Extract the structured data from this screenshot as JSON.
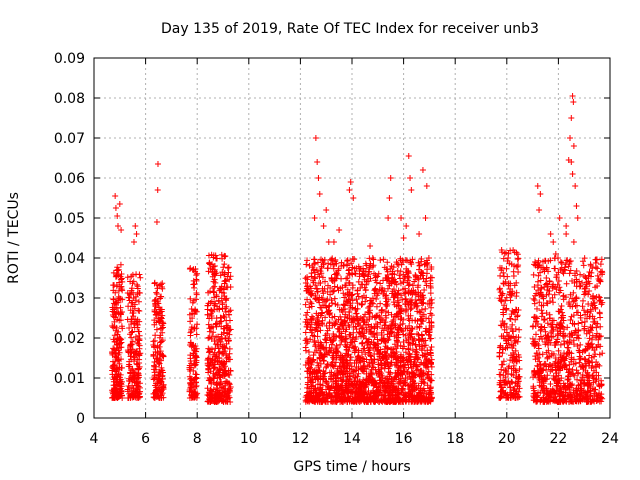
{
  "chart_data": {
    "type": "scatter",
    "title": "Day 135 of 2019, Rate Of TEC Index for receiver unb3",
    "xlabel": "GPS time / hours",
    "ylabel": "ROTI / TECUs",
    "xlim": [
      4,
      24
    ],
    "ylim": [
      0,
      0.09
    ],
    "xticks": [
      "4",
      "6",
      "8",
      "10",
      "12",
      "14",
      "16",
      "18",
      "20",
      "22",
      "24"
    ],
    "yticks": [
      "0",
      "0.01",
      "0.02",
      "0.03",
      "0.04",
      "0.05",
      "0.06",
      "0.07",
      "0.08",
      "0.09"
    ],
    "grid": true,
    "marker": "+",
    "color": "#ff0000",
    "series": [
      {
        "name": "ROTI",
        "clusters": [
          {
            "x": [
              4.7,
              5.1
            ],
            "ymin": 0.005,
            "ymax": 0.039,
            "n": 220
          },
          {
            "x": [
              5.3,
              5.8
            ],
            "ymin": 0.005,
            "ymax": 0.036,
            "n": 200
          },
          {
            "x": [
              6.3,
              6.7
            ],
            "ymin": 0.005,
            "ymax": 0.034,
            "n": 170
          },
          {
            "x": [
              7.7,
              8.0
            ],
            "ymin": 0.005,
            "ymax": 0.038,
            "n": 130
          },
          {
            "x": [
              8.4,
              9.3
            ],
            "ymin": 0.004,
            "ymax": 0.041,
            "n": 420
          },
          {
            "x": [
              12.2,
              17.1
            ],
            "ymin": 0.004,
            "ymax": 0.04,
            "n": 2200
          },
          {
            "x": [
              19.7,
              20.5
            ],
            "ymin": 0.005,
            "ymax": 0.042,
            "n": 260
          },
          {
            "x": [
              21.0,
              23.7
            ],
            "ymin": 0.004,
            "ymax": 0.04,
            "n": 900
          }
        ],
        "points": [
          {
            "x": 4.82,
            "y": 0.0555
          },
          {
            "x": 4.85,
            "y": 0.0525
          },
          {
            "x": 4.9,
            "y": 0.0505
          },
          {
            "x": 4.93,
            "y": 0.048
          },
          {
            "x": 5.0,
            "y": 0.0535
          },
          {
            "x": 5.05,
            "y": 0.047
          },
          {
            "x": 5.6,
            "y": 0.048
          },
          {
            "x": 5.65,
            "y": 0.046
          },
          {
            "x": 5.55,
            "y": 0.044
          },
          {
            "x": 6.48,
            "y": 0.0635
          },
          {
            "x": 6.47,
            "y": 0.057
          },
          {
            "x": 6.44,
            "y": 0.049
          },
          {
            "x": 12.6,
            "y": 0.07
          },
          {
            "x": 12.65,
            "y": 0.064
          },
          {
            "x": 12.7,
            "y": 0.06
          },
          {
            "x": 12.75,
            "y": 0.056
          },
          {
            "x": 12.55,
            "y": 0.05
          },
          {
            "x": 12.9,
            "y": 0.048
          },
          {
            "x": 13.0,
            "y": 0.052
          },
          {
            "x": 13.1,
            "y": 0.044
          },
          {
            "x": 13.5,
            "y": 0.047
          },
          {
            "x": 13.95,
            "y": 0.059
          },
          {
            "x": 13.9,
            "y": 0.057
          },
          {
            "x": 14.05,
            "y": 0.055
          },
          {
            "x": 15.5,
            "y": 0.06
          },
          {
            "x": 15.45,
            "y": 0.055
          },
          {
            "x": 15.4,
            "y": 0.05
          },
          {
            "x": 15.9,
            "y": 0.05
          },
          {
            "x": 16.1,
            "y": 0.048
          },
          {
            "x": 16.2,
            "y": 0.0655
          },
          {
            "x": 16.25,
            "y": 0.06
          },
          {
            "x": 16.3,
            "y": 0.057
          },
          {
            "x": 16.75,
            "y": 0.062
          },
          {
            "x": 16.9,
            "y": 0.058
          },
          {
            "x": 16.85,
            "y": 0.05
          },
          {
            "x": 16.6,
            "y": 0.046
          },
          {
            "x": 16.0,
            "y": 0.045
          },
          {
            "x": 14.7,
            "y": 0.043
          },
          {
            "x": 13.3,
            "y": 0.044
          },
          {
            "x": 21.2,
            "y": 0.058
          },
          {
            "x": 21.3,
            "y": 0.056
          },
          {
            "x": 21.25,
            "y": 0.052
          },
          {
            "x": 21.7,
            "y": 0.046
          },
          {
            "x": 21.8,
            "y": 0.044
          },
          {
            "x": 22.05,
            "y": 0.05
          },
          {
            "x": 22.3,
            "y": 0.048
          },
          {
            "x": 22.4,
            "y": 0.0645
          },
          {
            "x": 22.5,
            "y": 0.064
          },
          {
            "x": 22.55,
            "y": 0.0805
          },
          {
            "x": 22.58,
            "y": 0.079
          },
          {
            "x": 22.5,
            "y": 0.075
          },
          {
            "x": 22.45,
            "y": 0.07
          },
          {
            "x": 22.6,
            "y": 0.068
          },
          {
            "x": 22.55,
            "y": 0.061
          },
          {
            "x": 22.65,
            "y": 0.058
          },
          {
            "x": 22.7,
            "y": 0.053
          },
          {
            "x": 22.75,
            "y": 0.05
          },
          {
            "x": 22.6,
            "y": 0.044
          },
          {
            "x": 22.3,
            "y": 0.046
          },
          {
            "x": 21.9,
            "y": 0.041
          },
          {
            "x": 20.05,
            "y": 0.04
          },
          {
            "x": 19.8,
            "y": 0.042
          }
        ]
      }
    ]
  }
}
